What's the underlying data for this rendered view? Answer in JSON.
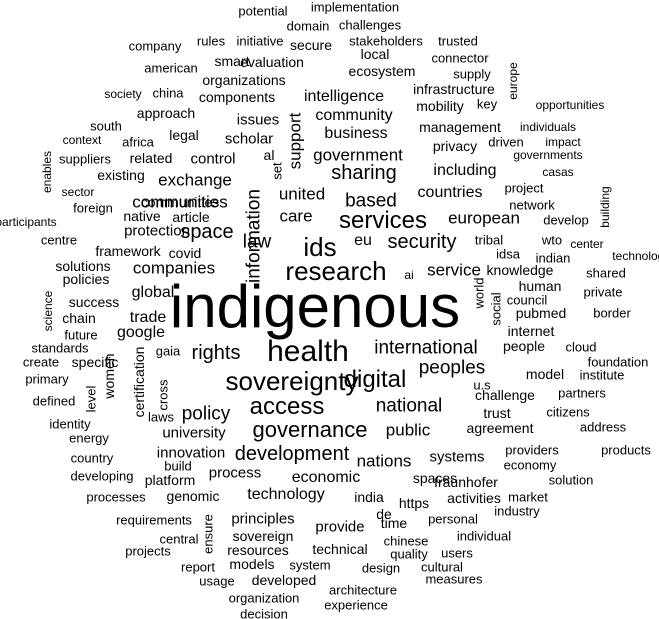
{
  "words": [
    {
      "text": "indigenous"
    },
    {
      "text": "health"
    },
    {
      "text": "sovereignty"
    },
    {
      "text": "research"
    },
    {
      "text": "access"
    },
    {
      "text": "digital"
    },
    {
      "text": "services"
    },
    {
      "text": "ids"
    },
    {
      "text": "governance"
    },
    {
      "text": "security"
    },
    {
      "text": "international"
    },
    {
      "text": "national"
    },
    {
      "text": "sharing"
    },
    {
      "text": "rights"
    },
    {
      "text": "development"
    },
    {
      "text": "peoples"
    },
    {
      "text": "space"
    },
    {
      "text": "policy"
    },
    {
      "text": "information"
    },
    {
      "text": "based"
    },
    {
      "text": "law"
    },
    {
      "text": "companies"
    },
    {
      "text": "government"
    },
    {
      "text": "service"
    },
    {
      "text": "communities"
    },
    {
      "text": "care"
    },
    {
      "text": "united"
    },
    {
      "text": "public"
    },
    {
      "text": "nations"
    },
    {
      "text": "exchange"
    },
    {
      "text": "european"
    },
    {
      "text": "eu"
    },
    {
      "text": "business"
    },
    {
      "text": "community"
    },
    {
      "text": "intelligence"
    },
    {
      "text": "support"
    },
    {
      "text": "technology"
    },
    {
      "text": "economic"
    },
    {
      "text": "countries"
    },
    {
      "text": "including"
    },
    {
      "text": "systems"
    },
    {
      "text": "trade"
    },
    {
      "text": "global"
    },
    {
      "text": "google"
    },
    {
      "text": "protection"
    },
    {
      "text": "control"
    },
    {
      "text": "scholar"
    },
    {
      "text": "issues"
    },
    {
      "text": "components"
    },
    {
      "text": "management"
    },
    {
      "text": "privacy"
    },
    {
      "text": "university"
    },
    {
      "text": "innovation"
    },
    {
      "text": "process"
    },
    {
      "text": "principles"
    },
    {
      "text": "provide"
    },
    {
      "text": "time"
    },
    {
      "text": "trust"
    },
    {
      "text": "agreement"
    },
    {
      "text": "challenge"
    },
    {
      "text": "people"
    },
    {
      "text": "model"
    },
    {
      "text": "human"
    },
    {
      "text": "knowledge"
    },
    {
      "text": "internet"
    },
    {
      "text": "pubmed"
    },
    {
      "text": "world"
    },
    {
      "text": "social"
    },
    {
      "text": "idsa"
    },
    {
      "text": "tribal"
    },
    {
      "text": "india"
    },
    {
      "text": "https"
    },
    {
      "text": "spaces"
    },
    {
      "text": "fraunhofer"
    },
    {
      "text": "activities"
    },
    {
      "text": "genomic"
    },
    {
      "text": "platform"
    },
    {
      "text": "sovereign"
    },
    {
      "text": "resources"
    },
    {
      "text": "technical"
    },
    {
      "text": "certification"
    },
    {
      "text": "women"
    },
    {
      "text": "success"
    },
    {
      "text": "specific"
    },
    {
      "text": "legal"
    },
    {
      "text": "communities"
    },
    {
      "text": "related"
    },
    {
      "text": "existing"
    },
    {
      "text": "native"
    },
    {
      "text": "article"
    },
    {
      "text": "framework"
    },
    {
      "text": "covid"
    },
    {
      "text": "policies"
    },
    {
      "text": "solutions"
    },
    {
      "text": "chain"
    },
    {
      "text": "future"
    },
    {
      "text": "standards"
    },
    {
      "text": "primary"
    },
    {
      "text": "create"
    },
    {
      "text": "defined"
    },
    {
      "text": "identity"
    },
    {
      "text": "energy"
    },
    {
      "text": "country"
    },
    {
      "text": "level"
    },
    {
      "text": "cross"
    },
    {
      "text": "laws"
    },
    {
      "text": "gaia"
    },
    {
      "text": "developing"
    },
    {
      "text": "processes"
    },
    {
      "text": "requirements"
    },
    {
      "text": "projects"
    },
    {
      "text": "central"
    },
    {
      "text": "ensure"
    },
    {
      "text": "report"
    },
    {
      "text": "usage"
    },
    {
      "text": "models"
    },
    {
      "text": "developed"
    },
    {
      "text": "organization"
    },
    {
      "text": "decision"
    },
    {
      "text": "system"
    },
    {
      "text": "architecture"
    },
    {
      "text": "experience"
    },
    {
      "text": "design"
    },
    {
      "text": "chinese"
    },
    {
      "text": "quality"
    },
    {
      "text": "users"
    },
    {
      "text": "cultural"
    },
    {
      "text": "measures"
    },
    {
      "text": "personal"
    },
    {
      "text": "individual"
    },
    {
      "text": "industry"
    },
    {
      "text": "market"
    },
    {
      "text": "solution"
    },
    {
      "text": "economy"
    },
    {
      "text": "providers"
    },
    {
      "text": "products"
    },
    {
      "text": "address"
    },
    {
      "text": "citizens"
    },
    {
      "text": "partners"
    },
    {
      "text": "institute"
    },
    {
      "text": "foundation"
    },
    {
      "text": "cloud"
    },
    {
      "text": "border"
    },
    {
      "text": "council"
    },
    {
      "text": "private"
    },
    {
      "text": "shared"
    },
    {
      "text": "indian"
    },
    {
      "text": "technologies"
    },
    {
      "text": "center"
    },
    {
      "text": "wto"
    },
    {
      "text": "develop"
    },
    {
      "text": "network"
    },
    {
      "text": "casas"
    },
    {
      "text": "project"
    },
    {
      "text": "building"
    },
    {
      "text": "governments"
    },
    {
      "text": "impact"
    },
    {
      "text": "driven"
    },
    {
      "text": "individuals"
    },
    {
      "text": "opportunities"
    },
    {
      "text": "europe"
    },
    {
      "text": "key"
    },
    {
      "text": "mobility"
    },
    {
      "text": "infrastructure"
    },
    {
      "text": "supply"
    },
    {
      "text": "connector"
    },
    {
      "text": "ecosystem"
    },
    {
      "text": "local"
    },
    {
      "text": "trusted"
    },
    {
      "text": "stakeholders"
    },
    {
      "text": "secure"
    },
    {
      "text": "evaluation"
    },
    {
      "text": "smart"
    },
    {
      "text": "organizations"
    },
    {
      "text": "initiative"
    },
    {
      "text": "rules"
    },
    {
      "text": "domain"
    },
    {
      "text": "challenges"
    },
    {
      "text": "potential"
    },
    {
      "text": "implementation"
    },
    {
      "text": "company"
    },
    {
      "text": "american"
    },
    {
      "text": "society"
    },
    {
      "text": "china"
    },
    {
      "text": "approach"
    },
    {
      "text": "south"
    },
    {
      "text": "africa"
    },
    {
      "text": "context"
    },
    {
      "text": "suppliers"
    },
    {
      "text": "enables"
    },
    {
      "text": "sector"
    },
    {
      "text": "foreign"
    },
    {
      "text": "participants"
    },
    {
      "text": "centre"
    },
    {
      "text": "science"
    },
    {
      "text": "al"
    },
    {
      "text": "set"
    },
    {
      "text": "de"
    },
    {
      "text": "u.s"
    },
    {
      "text": "ai"
    },
    {
      "text": "build"
    }
  ]
}
